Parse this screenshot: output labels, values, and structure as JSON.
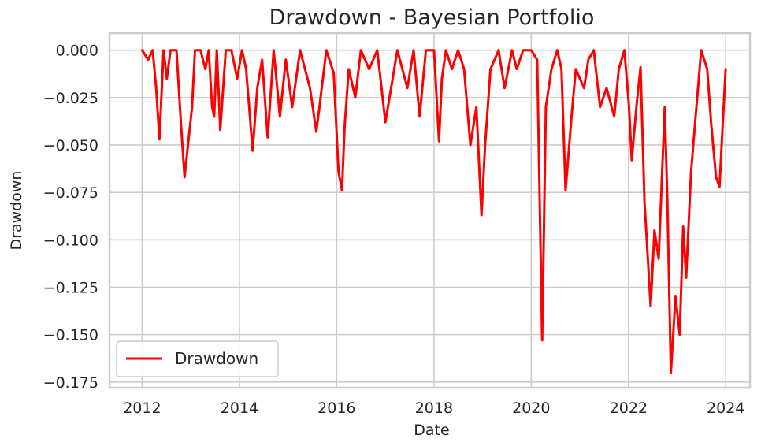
{
  "chart_data": {
    "type": "line",
    "title": "Drawdown - Bayesian Portfolio",
    "xlabel": "Date",
    "ylabel": "Drawdown",
    "x_ticks": [
      "2012",
      "2014",
      "2016",
      "2018",
      "2020",
      "2022",
      "2024"
    ],
    "y_ticks": [
      "0.000",
      "−0.025",
      "−0.050",
      "−0.075",
      "−0.100",
      "−0.125",
      "−0.150",
      "−0.175"
    ],
    "xlim": [
      "2011-05-01",
      "2024-07-01"
    ],
    "ylim": [
      -0.178,
      0.009
    ],
    "grid": true,
    "legend_position": "lower-left",
    "series": [
      {
        "name": "Drawdown",
        "color": "#ff0000",
        "x": [
          "2012-01-01",
          "2012-02-15",
          "2012-03-20",
          "2012-04-15",
          "2012-05-10",
          "2012-06-10",
          "2012-07-05",
          "2012-08-01",
          "2012-09-15",
          "2012-10-20",
          "2012-11-15",
          "2012-12-10",
          "2013-01-10",
          "2013-02-01",
          "2013-03-15",
          "2013-04-20",
          "2013-05-15",
          "2013-06-10",
          "2013-06-25",
          "2013-07-15",
          "2013-08-10",
          "2013-09-20",
          "2013-11-01",
          "2013-12-15",
          "2014-01-20",
          "2014-02-20",
          "2014-03-15",
          "2014-04-10",
          "2014-05-15",
          "2014-06-20",
          "2014-08-01",
          "2014-09-15",
          "2014-11-01",
          "2014-12-15",
          "2015-02-01",
          "2015-04-01",
          "2015-06-15",
          "2015-08-01",
          "2015-08-25",
          "2015-10-15",
          "2015-12-10",
          "2016-01-15",
          "2016-02-10",
          "2016-03-01",
          "2016-04-01",
          "2016-05-20",
          "2016-07-01",
          "2016-09-01",
          "2016-11-01",
          "2017-01-01",
          "2017-04-01",
          "2017-06-15",
          "2017-08-01",
          "2017-09-15",
          "2017-11-01",
          "2018-01-01",
          "2018-02-08",
          "2018-03-01",
          "2018-04-01",
          "2018-05-15",
          "2018-07-01",
          "2018-08-15",
          "2018-10-01",
          "2018-11-15",
          "2018-12-24",
          "2019-01-20",
          "2019-03-01",
          "2019-05-01",
          "2019-06-15",
          "2019-08-10",
          "2019-09-15",
          "2019-11-01",
          "2020-01-01",
          "2020-02-15",
          "2020-03-23",
          "2020-04-20",
          "2020-06-01",
          "2020-07-15",
          "2020-08-15",
          "2020-09-15",
          "2020-10-30",
          "2020-12-01",
          "2021-02-01",
          "2021-03-05",
          "2021-04-15",
          "2021-06-01",
          "2021-07-20",
          "2021-09-15",
          "2021-10-20",
          "2021-12-01",
          "2022-01-05",
          "2022-01-25",
          "2022-03-01",
          "2022-04-01",
          "2022-05-01",
          "2022-06-16",
          "2022-07-15",
          "2022-08-15",
          "2022-09-30",
          "2022-10-20",
          "2022-11-15",
          "2022-12-20",
          "2023-01-20",
          "2023-02-15",
          "2023-03-10",
          "2023-04-15",
          "2023-05-20",
          "2023-07-01",
          "2023-08-15",
          "2023-09-15",
          "2023-10-20",
          "2023-11-15",
          "2023-12-31"
        ],
        "values": [
          0.0,
          -0.005,
          0.0,
          -0.02,
          -0.047,
          0.0,
          -0.015,
          0.0,
          0.0,
          -0.04,
          -0.067,
          -0.05,
          -0.03,
          0.0,
          0.0,
          -0.01,
          0.0,
          -0.03,
          -0.035,
          0.0,
          -0.042,
          0.0,
          0.0,
          -0.015,
          0.0,
          -0.01,
          -0.03,
          -0.053,
          -0.02,
          -0.005,
          -0.046,
          0.0,
          -0.035,
          -0.005,
          -0.03,
          0.0,
          -0.02,
          -0.043,
          -0.03,
          0.0,
          -0.012,
          -0.064,
          -0.074,
          -0.04,
          -0.01,
          -0.025,
          0.0,
          -0.01,
          0.0,
          -0.038,
          0.0,
          -0.02,
          0.0,
          -0.035,
          0.0,
          0.0,
          -0.048,
          -0.015,
          0.0,
          -0.01,
          0.0,
          -0.01,
          -0.05,
          -0.03,
          -0.087,
          -0.05,
          -0.01,
          0.0,
          -0.02,
          0.0,
          -0.01,
          0.0,
          0.0,
          -0.005,
          -0.153,
          -0.03,
          -0.01,
          0.0,
          -0.01,
          -0.074,
          -0.035,
          -0.01,
          -0.02,
          -0.005,
          0.0,
          -0.03,
          -0.02,
          -0.035,
          -0.01,
          0.0,
          -0.03,
          -0.058,
          -0.03,
          -0.009,
          -0.08,
          -0.135,
          -0.095,
          -0.11,
          -0.03,
          -0.08,
          -0.17,
          -0.13,
          -0.15,
          -0.093,
          -0.12,
          -0.065,
          -0.035,
          0.0,
          -0.01,
          -0.04,
          -0.067,
          -0.072,
          -0.01
        ]
      }
    ]
  }
}
